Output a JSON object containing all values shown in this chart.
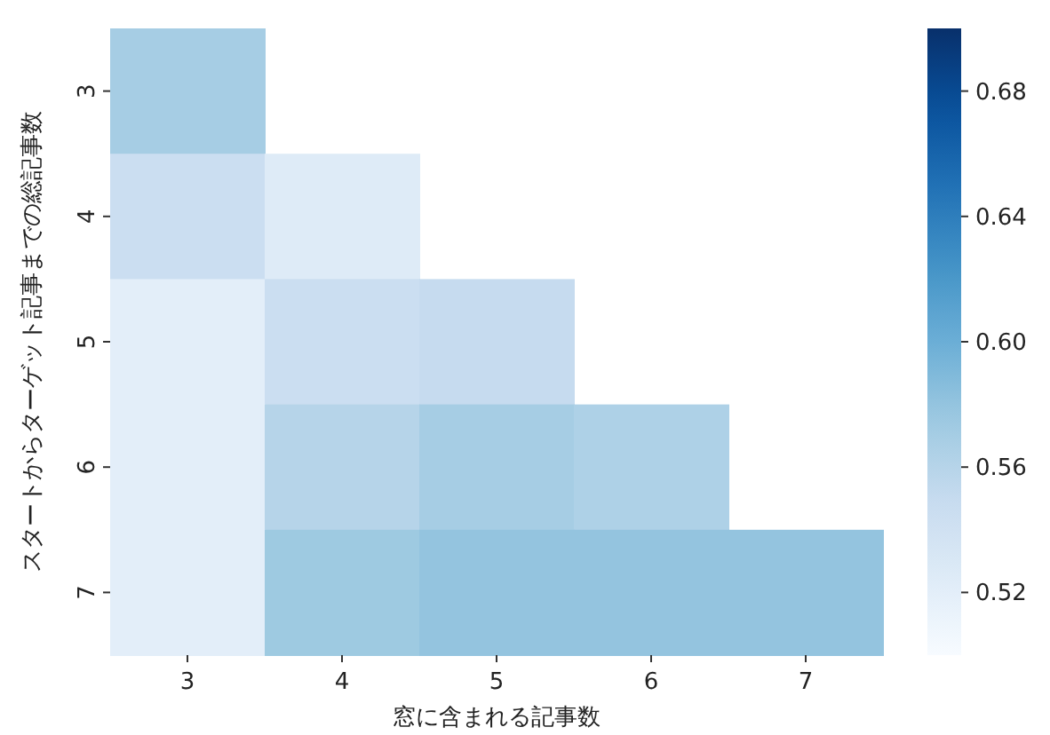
{
  "chart_data": {
    "type": "heatmap",
    "xlabel": "窓に含まれる記事数",
    "ylabel": "スタートからターゲット記事までの総記事数",
    "categories": [
      "3",
      "4",
      "5",
      "6",
      "7"
    ],
    "y_categories": [
      "3",
      "4",
      "5",
      "6",
      "7"
    ],
    "cells": [
      [
        0.57,
        null,
        null,
        null,
        null
      ],
      [
        0.545,
        0.525,
        null,
        null,
        null
      ],
      [
        0.52,
        0.545,
        0.55,
        null,
        null
      ],
      [
        0.52,
        0.56,
        0.57,
        0.565,
        null
      ],
      [
        0.52,
        0.575,
        0.58,
        0.58,
        0.58
      ]
    ],
    "clim": [
      0.5,
      0.7
    ],
    "cticks": [
      0.52,
      0.56,
      {
        "value": 0.6,
        "label": "0.60"
      },
      0.64,
      0.68
    ]
  }
}
